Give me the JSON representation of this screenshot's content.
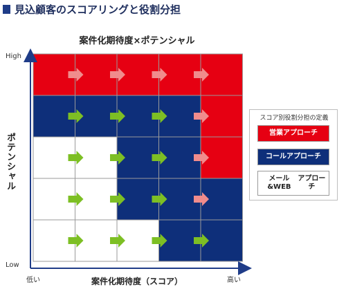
{
  "heading": "見込顧客のスコアリングと役割分担",
  "chart_data": {
    "type": "heatmap",
    "title": "案件化期待度×ポテンシャル",
    "xlabel": "案件化期待度（スコア）",
    "ylabel": "ポテンシャル",
    "x_low": "低い",
    "x_high": "高い",
    "y_high": "High",
    "y_low": "Low",
    "rows_top_to_bottom": [
      [
        "sales",
        "sales",
        "sales",
        "sales",
        "sales"
      ],
      [
        "call",
        "call",
        "call",
        "call",
        "sales"
      ],
      [
        "mail",
        "mail",
        "call",
        "call",
        "sales"
      ],
      [
        "mail",
        "mail",
        "call",
        "call",
        "call"
      ],
      [
        "mail",
        "mail",
        "mail",
        "call",
        "call"
      ]
    ],
    "arrow_rows": [
      [
        "pink",
        "pink",
        "pink",
        "pink"
      ],
      [
        "green",
        "green",
        "green",
        "pink"
      ],
      [
        "green",
        "green",
        "green",
        "pink"
      ],
      [
        "green",
        "green",
        "green",
        "pink"
      ],
      [
        "green",
        "green",
        "green",
        "green"
      ]
    ],
    "colors": {
      "sales": "#e60012",
      "call": "#0e2f7a",
      "mail": "#ffffff",
      "arrow_pink": "#f08c8c",
      "arrow_green": "#7dbf24",
      "axis": "#1f3c88"
    }
  },
  "legend": {
    "title": "スコア別役割分担の定義",
    "items": [
      {
        "key": "sales",
        "label": "営業アプローチ"
      },
      {
        "key": "call",
        "label": "コールアプローチ"
      },
      {
        "key": "mail",
        "line1": "メール&WEB",
        "line2": "アプローチ"
      }
    ]
  }
}
